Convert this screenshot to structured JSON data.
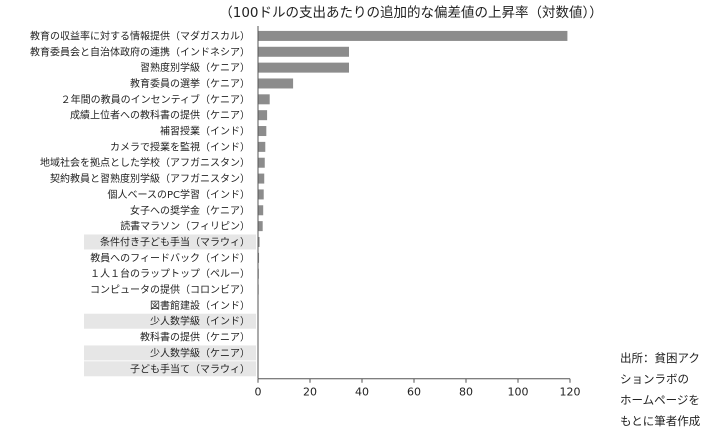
{
  "chart_data": {
    "type": "bar",
    "orientation": "horizontal",
    "title": "（100ドルの支出あたりの追加的な偏差値の上昇率（対数値））",
    "categories": [
      "教育の収益率に対する情報提供（マダガスカル）",
      "教育委員会と自治体政府の連携（インドネシア）",
      "習熟度別学級（ケニア）",
      "教育委員の選挙（ケニア）",
      "２年間の教員のインセンティブ（ケニア）",
      "成績上位者への教科書の提供（ケニア）",
      "補習授業（インド）",
      "カメラで授業を監視（インド）",
      "地域社会を拠点とした学校（アフガニスタン）",
      "契約教員と習熟度別学級（アフガニスタン）",
      "個人ベースのPC学習（インド）",
      "女子への奨学金（ケニア）",
      "読書マラソン（フィリピン）",
      "条件付き子ども手当（マラウィ）",
      "教員へのフィードバック（インド）",
      "１人１台のラップトップ（ペルー）",
      "コンピュータの提供（コロンビア）",
      "図書館建設（インド）",
      "少人数学級（インド）",
      "教科書の提供（ケニア）",
      "少人数学級（ケニア）",
      "子ども手当て（マラウィ）"
    ],
    "values": [
      119,
      35,
      35,
      13.5,
      4.5,
      3.5,
      3.2,
      2.8,
      2.6,
      2.4,
      2.2,
      2.0,
      1.8,
      0.6,
      0.4,
      0.3,
      0.25,
      0.2,
      0.15,
      0.12,
      0.1,
      0.08
    ],
    "highlighted": [
      13,
      18,
      20,
      21
    ],
    "xticks": [
      0,
      20,
      40,
      60,
      80,
      100,
      120
    ],
    "xlim": [
      0,
      120
    ],
    "bar_color": "#8c8c8c",
    "highlight_color": "#e6e6e6",
    "grid": false
  },
  "source_note": [
    "出所：貧困アク",
    "ションラボの",
    "ホームページを",
    "もとに筆者作成"
  ]
}
